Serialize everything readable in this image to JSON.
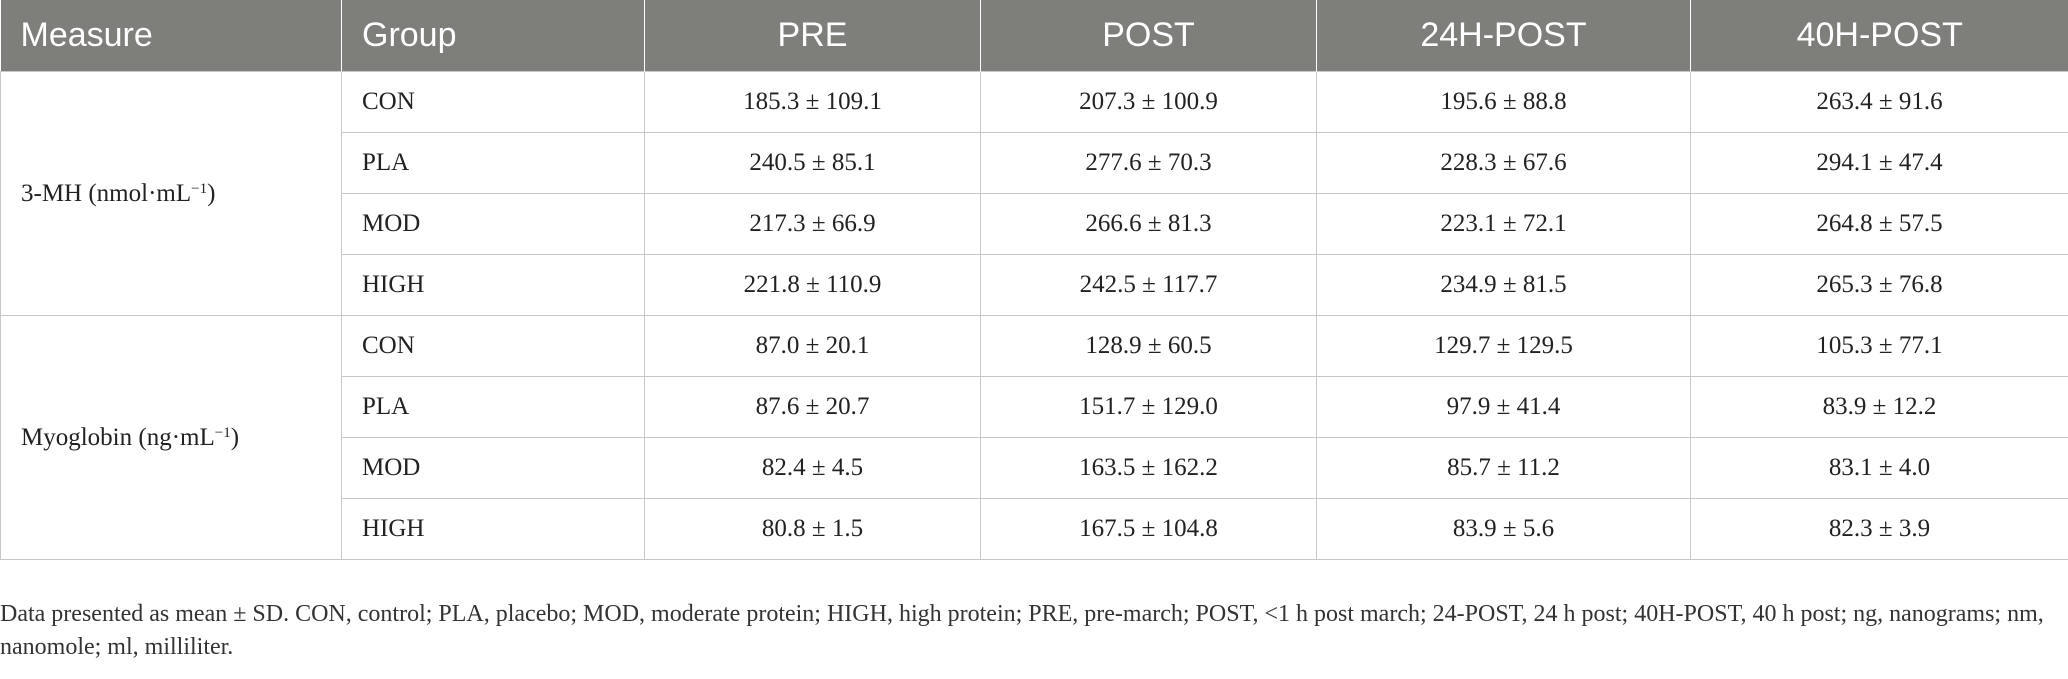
{
  "table": {
    "headers": [
      "Measure",
      "Group",
      "PRE",
      "POST",
      "24H-POST",
      "40H-POST"
    ],
    "sections": [
      {
        "measure": "3-MH (nmol·mL",
        "measure_exp": "−1",
        "measure_close": ")",
        "rows": [
          {
            "group": "CON",
            "values": [
              "185.3 ± 109.1",
              "207.3 ± 100.9",
              "195.6 ± 88.8",
              "263.4 ± 91.6"
            ]
          },
          {
            "group": "PLA",
            "values": [
              "240.5 ± 85.1",
              "277.6 ± 70.3",
              "228.3 ± 67.6",
              "294.1 ± 47.4"
            ]
          },
          {
            "group": "MOD",
            "values": [
              "217.3 ± 66.9",
              "266.6 ± 81.3",
              "223.1 ± 72.1",
              "264.8 ± 57.5"
            ]
          },
          {
            "group": "HIGH",
            "values": [
              "221.8 ± 110.9",
              "242.5 ± 117.7",
              "234.9 ± 81.5",
              "265.3 ± 76.8"
            ]
          }
        ]
      },
      {
        "measure": "Myoglobin (ng·mL",
        "measure_exp": "−1",
        "measure_close": ")",
        "rows": [
          {
            "group": "CON",
            "values": [
              "87.0 ± 20.1",
              "128.9 ± 60.5",
              "129.7 ± 129.5",
              "105.3 ± 77.1"
            ]
          },
          {
            "group": "PLA",
            "values": [
              "87.6 ± 20.7",
              "151.7 ± 129.0",
              "97.9 ± 41.4",
              "83.9 ± 12.2"
            ]
          },
          {
            "group": "MOD",
            "values": [
              "82.4 ± 4.5",
              "163.5 ± 162.2",
              "85.7 ± 11.2",
              "83.1 ± 4.0"
            ]
          },
          {
            "group": "HIGH",
            "values": [
              "80.8 ± 1.5",
              "167.5 ± 104.8",
              "83.9 ± 5.6",
              "82.3 ± 3.9"
            ]
          }
        ]
      }
    ]
  },
  "footnote": "Data presented as mean ± SD. CON, control; PLA, placebo; MOD, moderate protein; HIGH, high protein; PRE, pre-march; POST, <1 h post march; 24-POST, 24 h post; 40H-POST, 40 h post; ng, nanograms; nm, nanomole; ml, milliliter."
}
